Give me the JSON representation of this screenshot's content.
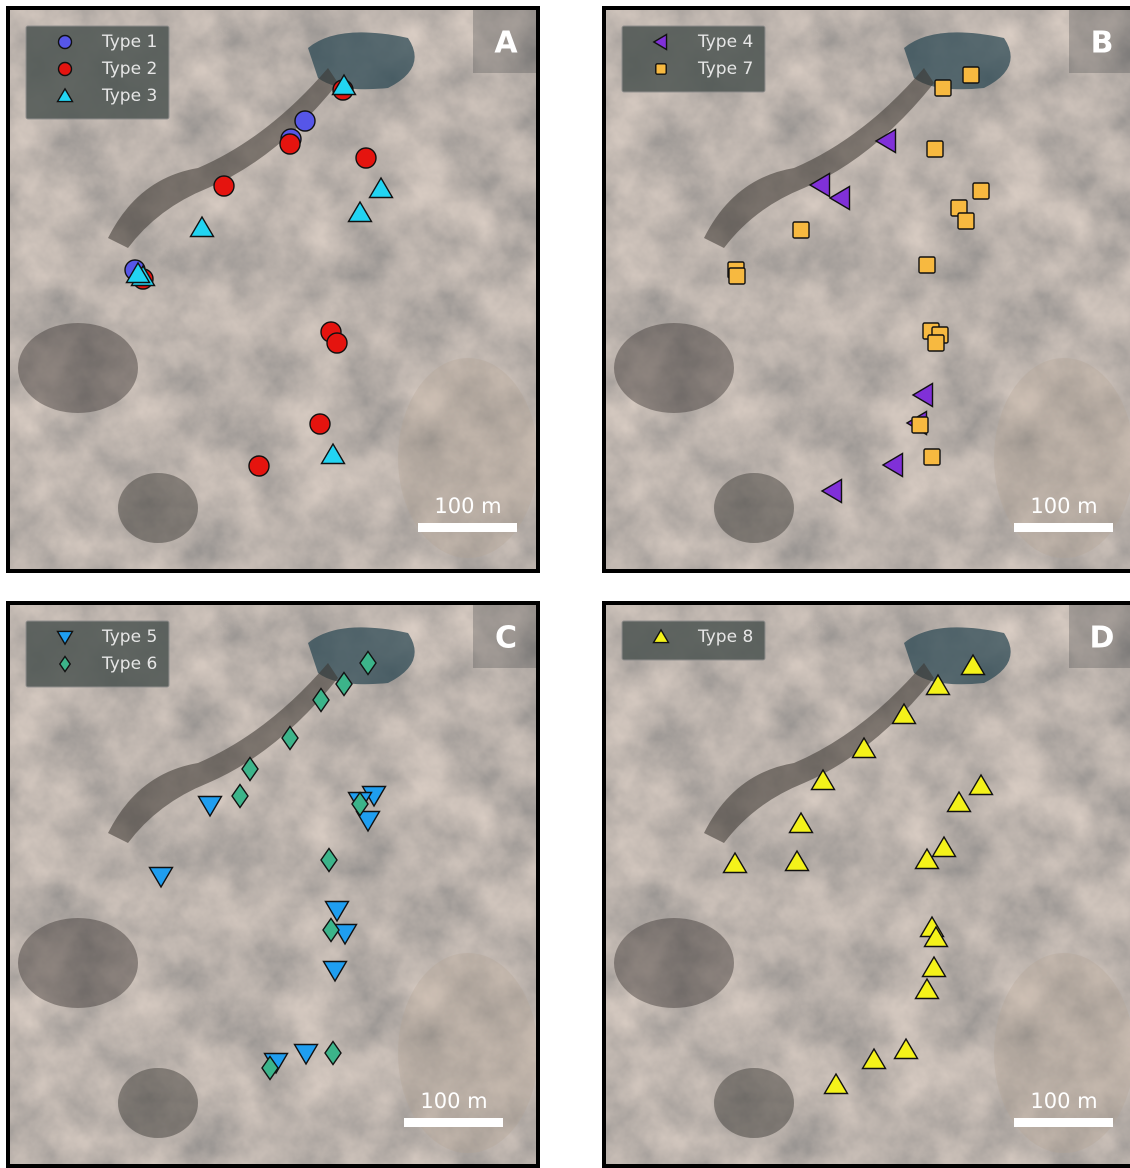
{
  "panels": [
    {
      "letter": "A",
      "scale_label": "100 m",
      "legend": [
        {
          "name": "Type 1",
          "color": "#5656e8",
          "marker": "circle"
        },
        {
          "name": "Type 2",
          "color": "#e5140f",
          "marker": "circle"
        },
        {
          "name": "Type 3",
          "color": "#22d4f2",
          "marker": "triangle-up"
        }
      ]
    },
    {
      "letter": "B",
      "scale_label": "100 m",
      "legend": [
        {
          "name": "Type 4",
          "color": "#8030d8",
          "marker": "triangle-left"
        },
        {
          "name": "Type 7",
          "color": "#f7b940",
          "marker": "square"
        }
      ]
    },
    {
      "letter": "C",
      "scale_label": "100 m",
      "legend": [
        {
          "name": "Type 5",
          "color": "#1f9ef0",
          "marker": "triangle-down"
        },
        {
          "name": "Type 6",
          "color": "#3cb48a",
          "marker": "diamond"
        }
      ]
    },
    {
      "letter": "D",
      "scale_label": "100 m",
      "legend": [
        {
          "name": "Type 8",
          "color": "#f4f21a",
          "marker": "triangle-up"
        }
      ]
    }
  ]
}
